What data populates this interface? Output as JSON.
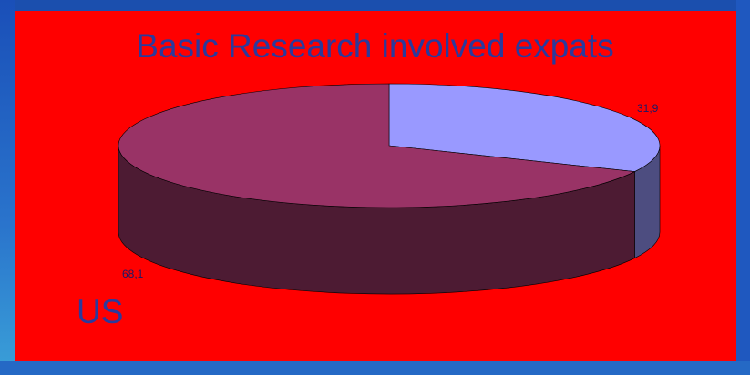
{
  "title": "Basic Research involved expats",
  "legend_label": "US",
  "colors": {
    "background": "#ff0000",
    "slice_large_top": "#993366",
    "slice_large_side": "#4d1b33",
    "slice_small_top": "#9999ff",
    "slice_small_side": "#4d4d80",
    "text": "#2b3a9c"
  },
  "chart_data": {
    "type": "pie",
    "style": "3d",
    "title": "Basic Research involved expats",
    "values": [
      31.9,
      68.1
    ],
    "labels": [
      "31,9",
      "68,1"
    ],
    "legend": [
      "US"
    ]
  }
}
